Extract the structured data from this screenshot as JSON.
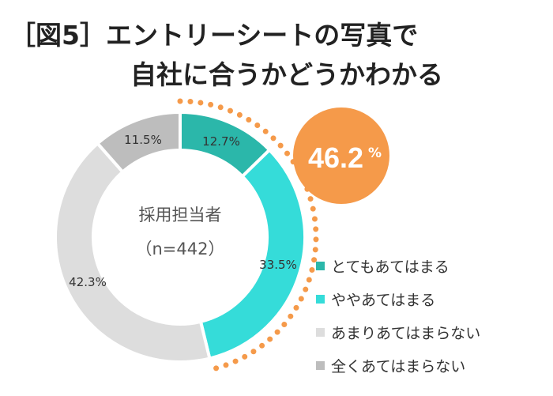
{
  "title_line1": "［図5］エントリーシートの写真で",
  "title_line2": "自社に合うかどうかわかる",
  "chart_data": {
    "type": "pie",
    "donut": true,
    "center_label": "採用担当者",
    "center_sublabel": "（n=442）",
    "categories": [
      "とてもあてはまる",
      "ややあてはまる",
      "あまりあてはまらない",
      "全くあてはまらない"
    ],
    "values": [
      12.7,
      33.5,
      42.3,
      11.5
    ],
    "value_labels": [
      "12.7%",
      "33.5%",
      "42.3%",
      "11.5%"
    ],
    "colors": [
      "#2bb7aa",
      "#35dcd9",
      "#dddddd",
      "#bdbdbd"
    ],
    "legend_position": "bottom-right",
    "highlight": {
      "value_label": "46.2",
      "unit": "%",
      "color": "#f59a4a"
    }
  }
}
